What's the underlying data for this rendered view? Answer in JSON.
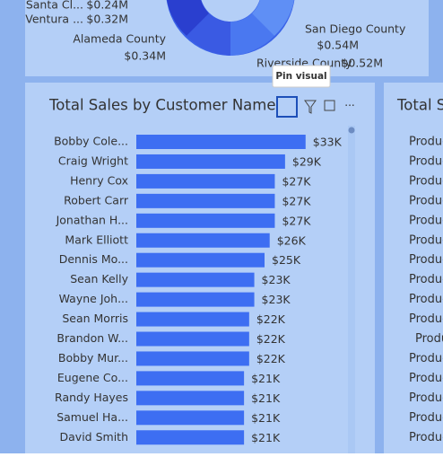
{
  "donut_labels": [
    {
      "name": "Santa Cl...",
      "value": "$0.24M"
    },
    {
      "name": "Ventura ...",
      "value": "$0.32M"
    },
    {
      "name": "Alameda County",
      "value": "$0.34M"
    },
    {
      "name": "San Diego County",
      "value": "$0.54M"
    },
    {
      "name": "Riverside County",
      "value": "$0.52M"
    }
  ],
  "tooltip": "Pin visual",
  "chart_data": {
    "type": "bar",
    "orientation": "horizontal",
    "title": "Total Sales by Customer Name",
    "categories": [
      "Bobby Cole...",
      "Craig Wright",
      "Henry Cox",
      "Robert Carr",
      "Jonathan H...",
      "Mark Elliott",
      "Dennis Mo...",
      "Sean Kelly",
      "Wayne Joh...",
      "Sean Morris",
      "Brandon W...",
      "Bobby Mur...",
      "Eugene Co...",
      "Randy Hayes",
      "Samuel Ha...",
      "David Smith"
    ],
    "values": [
      33,
      29,
      27,
      27,
      27,
      26,
      25,
      23,
      23,
      22,
      22,
      22,
      21,
      21,
      21,
      21
    ],
    "value_labels": [
      "$33K",
      "$29K",
      "$27K",
      "$27K",
      "$27K",
      "$26K",
      "$25K",
      "$23K",
      "$23K",
      "$22K",
      "$22K",
      "$22K",
      "$21K",
      "$21K",
      "$21K",
      "$21K"
    ],
    "color": "#3d6ef2"
  },
  "right_panel": {
    "title": "Total S",
    "rows": [
      "Produc",
      "Produc",
      "Produc",
      "Produc",
      "Produc",
      "Produc",
      "Produc",
      "Produc",
      "Produc",
      "Produc",
      "Produc",
      "Produc",
      "Produc",
      "Produc",
      "Produc",
      "Produc"
    ]
  }
}
